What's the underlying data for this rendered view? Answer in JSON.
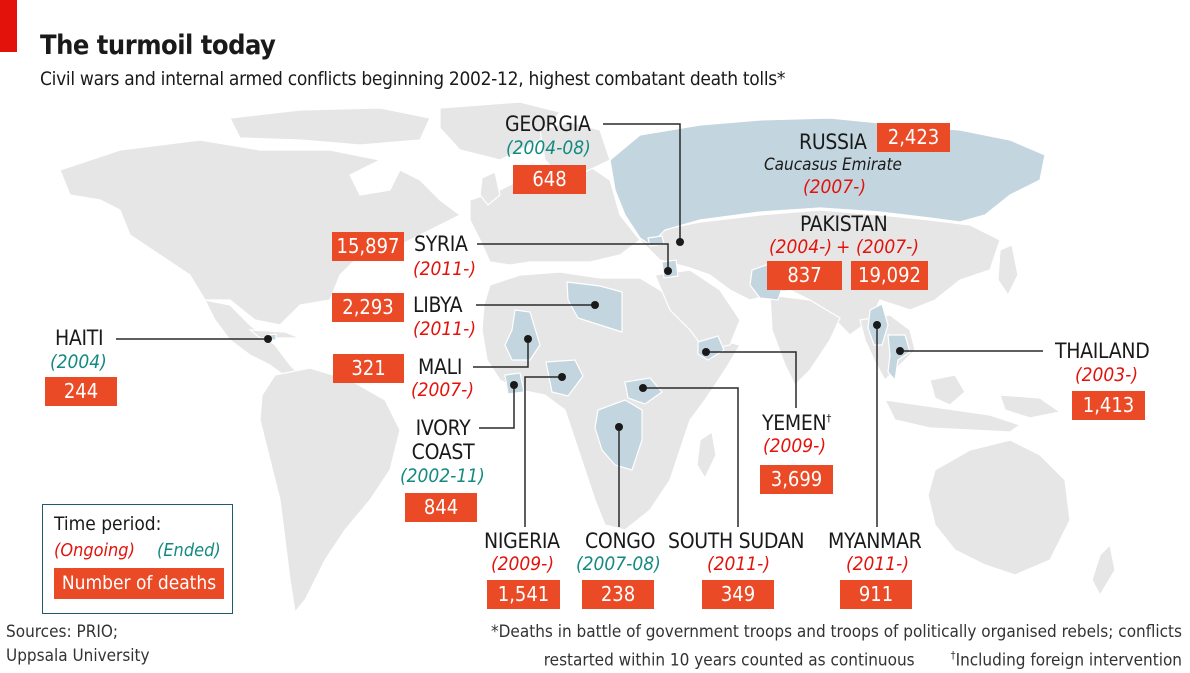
{
  "header": {
    "title": "The turmoil today",
    "subtitle": "Civil wars and internal armed conflicts beginning 2002-12, highest combatant death tolls*"
  },
  "colors": {
    "brand_red": "#e3120b",
    "deaths_box": "#ea4a26",
    "ongoing": "#e3120b",
    "ended": "#138a80",
    "highlight_country": "#c3d5df",
    "land": "#e6e6e6"
  },
  "conflicts": {
    "georgia": {
      "name": "GEORGIA",
      "period": "(2004-08)",
      "status": "ended",
      "deaths": "648"
    },
    "russia": {
      "name": "RUSSIA",
      "note": "Caucasus Emirate",
      "period": "(2007-)",
      "status": "ongoing",
      "deaths": "2,423"
    },
    "pakistan": {
      "name": "PAKISTAN",
      "period_a": "(2004-)",
      "plus": "+",
      "period_b": "(2007-)",
      "status": "ongoing",
      "deaths_a": "837",
      "deaths_b": "19,092"
    },
    "syria": {
      "name": "SYRIA",
      "period": "(2011-)",
      "status": "ongoing",
      "deaths": "15,897"
    },
    "libya": {
      "name": "LIBYA",
      "period": "(2011-)",
      "status": "ongoing",
      "deaths": "2,293"
    },
    "mali": {
      "name": "MALI",
      "period": "(2007-)",
      "status": "ongoing",
      "deaths": "321"
    },
    "haiti": {
      "name": "HAITI",
      "period": "(2004)",
      "status": "ended",
      "deaths": "244"
    },
    "ivory_coast": {
      "name_line1": "IVORY",
      "name_line2": "COAST",
      "period": "(2002-11)",
      "status": "ended",
      "deaths": "844"
    },
    "nigeria": {
      "name": "NIGERIA",
      "period": "(2009-)",
      "status": "ongoing",
      "deaths": "1,541"
    },
    "congo": {
      "name": "CONGO",
      "period": "(2007-08)",
      "status": "ended",
      "deaths": "238"
    },
    "south_sudan": {
      "name": "SOUTH SUDAN",
      "period": "(2011-)",
      "status": "ongoing",
      "deaths": "349"
    },
    "yemen": {
      "name": "YEMEN",
      "dagger": "†",
      "period": "(2009-)",
      "status": "ongoing",
      "deaths": "3,699"
    },
    "myanmar": {
      "name": "MYANMAR",
      "period": "(2011-)",
      "status": "ongoing",
      "deaths": "911"
    },
    "thailand": {
      "name": "THAILAND",
      "period": "(2003-)",
      "status": "ongoing",
      "deaths": "1,413"
    }
  },
  "legend": {
    "title": "Time period:",
    "ongoing": "(Ongoing)",
    "ended": "(Ended)",
    "deaths": "Number of deaths"
  },
  "footer": {
    "sources_line1": "Sources: PRIO;",
    "sources_line2": "Uppsala University",
    "footnote_line1": "*Deaths in battle of government troops and troops of politically organised rebels; conflicts",
    "footnote_line2": "restarted within 10 years counted as continuous",
    "dagger": "†",
    "footnote_dagger": "Including foreign intervention"
  }
}
